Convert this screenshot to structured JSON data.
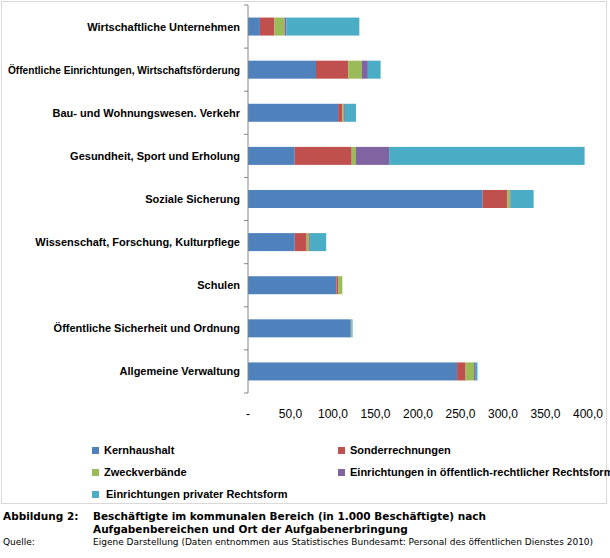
{
  "chart_data": {
    "type": "bar",
    "orientation": "horizontal",
    "stacked": true,
    "grid": false,
    "legend": "bottom",
    "title": "Beschäftigte im kommunalen Bereich (in 1.000 Beschäftigte) nach Aufgabenbereichen und Ort der Aufgabenerbringung",
    "annotations": [
      "Abbildung 2:",
      "Quelle:",
      "Eigene Darstellung (Daten entnommen aus Statistisches Bundesamt: Personal des öffentlichen Dienstes 2010)"
    ],
    "categories": [
      "Wirtschaftliche Unternehmen",
      "Öffentliche Einrichtungen, Wirtschaftsförderung",
      "Bau- und Wohnungswesen. Verkehr",
      "Gesundheit, Sport und Erholung",
      "Soziale Sicherung",
      "Wissenschaft, Forschung, Kulturpflege",
      "Schulen",
      "Öffentliche Sicherheit und Ordnung",
      "Allgemeine Verwaltung"
    ],
    "series": [
      {
        "name": "Kernhaushalt",
        "color": "#4f81bd",
        "values": [
          14,
          80,
          106,
          55,
          276,
          55,
          104,
          121,
          246
        ]
      },
      {
        "name": "Sonderrechnungen",
        "color": "#c0504d",
        "values": [
          17,
          38,
          5,
          67,
          29,
          14,
          2,
          0,
          10
        ]
      },
      {
        "name": "Zweckverbände",
        "color": "#9bbb59",
        "values": [
          12,
          16,
          2,
          5,
          3,
          3,
          5,
          1,
          10
        ]
      },
      {
        "name": "Einrichtungen in öffentlich-rechtlicher Rechtsform",
        "color": "#8064a2",
        "values": [
          2,
          7,
          1,
          39,
          1,
          1,
          0,
          0,
          2
        ]
      },
      {
        "name": "Einrichtungen privater Rechtsform",
        "color": "#4bacc6",
        "values": [
          86,
          15,
          13,
          230,
          27,
          19,
          0,
          1,
          2
        ]
      }
    ],
    "xlim": [
      0,
      400
    ],
    "xticks": [
      {
        "value": 0,
        "label": "-"
      },
      {
        "value": 50,
        "label": "50,0"
      },
      {
        "value": 100,
        "label": "100,0"
      },
      {
        "value": 150,
        "label": "150,0"
      },
      {
        "value": 200,
        "label": "200,0"
      },
      {
        "value": 250,
        "label": "250,0"
      },
      {
        "value": 300,
        "label": "300,0"
      },
      {
        "value": 350,
        "label": "350,0"
      },
      {
        "value": 400,
        "label": "400,0"
      }
    ]
  }
}
